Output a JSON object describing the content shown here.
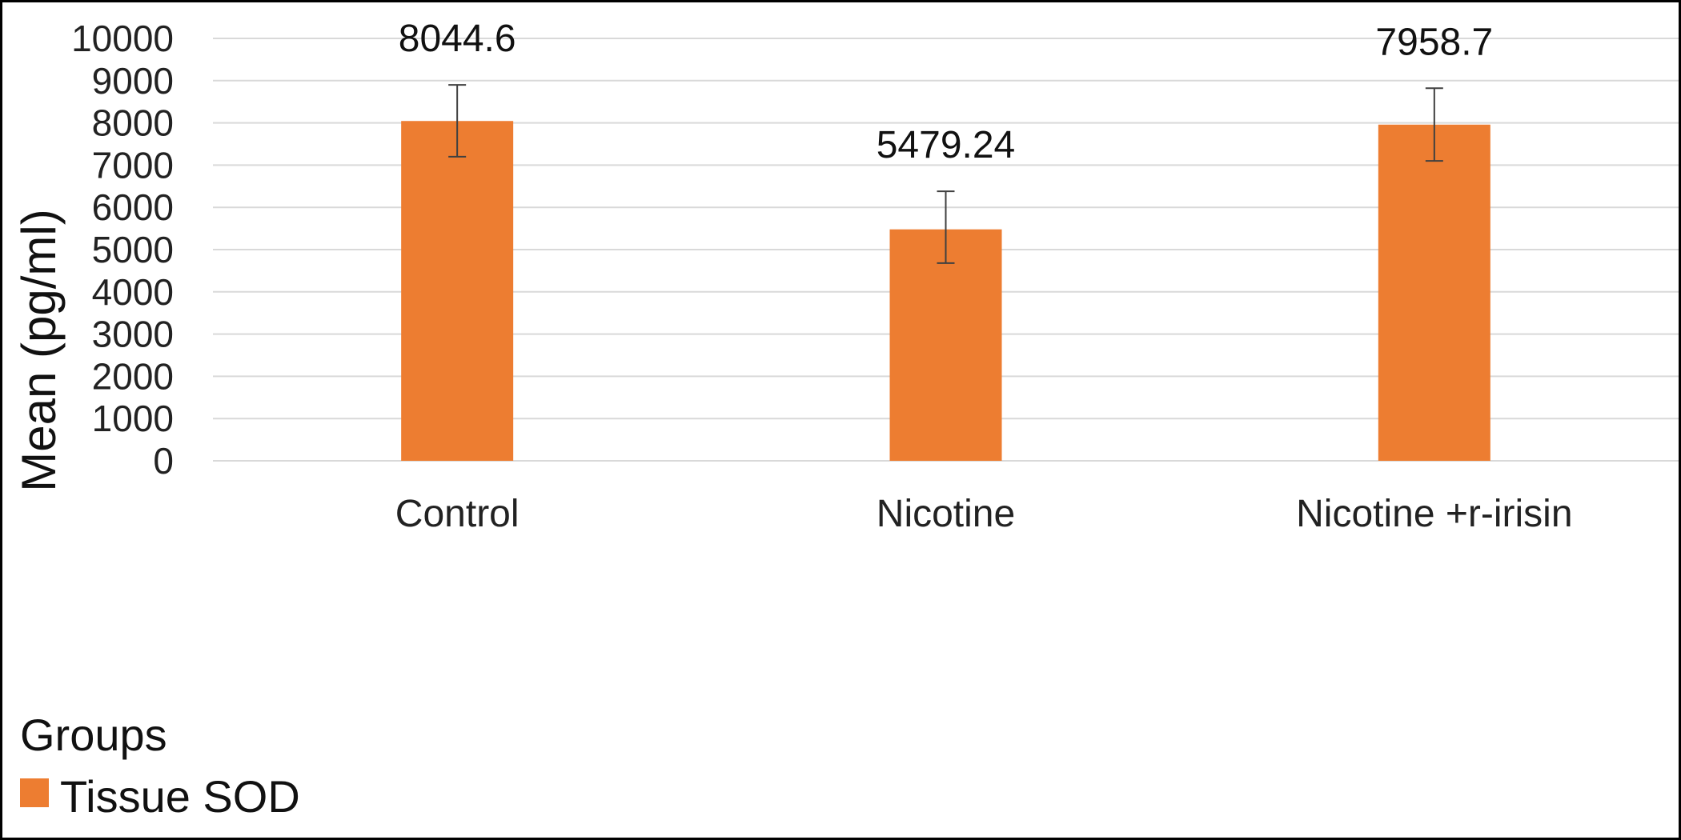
{
  "chart_data": {
    "type": "bar",
    "categories": [
      "Control",
      "Nicotine",
      "Nicotine +r-irisin"
    ],
    "series": [
      {
        "name": "Tissue SOD",
        "values": [
          8044.6,
          5479.24,
          7958.7
        ],
        "data_labels": [
          "8044.6",
          "5479.24",
          "7958.7"
        ],
        "error_bars": {
          "upper": [
            8900,
            6380,
            8820
          ],
          "lower": [
            7200,
            4680,
            7100
          ]
        },
        "color": "#ED7D31"
      }
    ],
    "ylabel": "Mean (pg/ml)",
    "xlabel": "",
    "ylim": [
      0,
      10000
    ],
    "yticks": [
      0,
      1000,
      2000,
      3000,
      4000,
      5000,
      6000,
      7000,
      8000,
      9000,
      10000
    ],
    "grid": true,
    "gridline_color": "#D9D9D9",
    "legend": {
      "title": "Groups",
      "placement": "bottom-left",
      "entries": [
        "Tissue SOD"
      ]
    }
  }
}
